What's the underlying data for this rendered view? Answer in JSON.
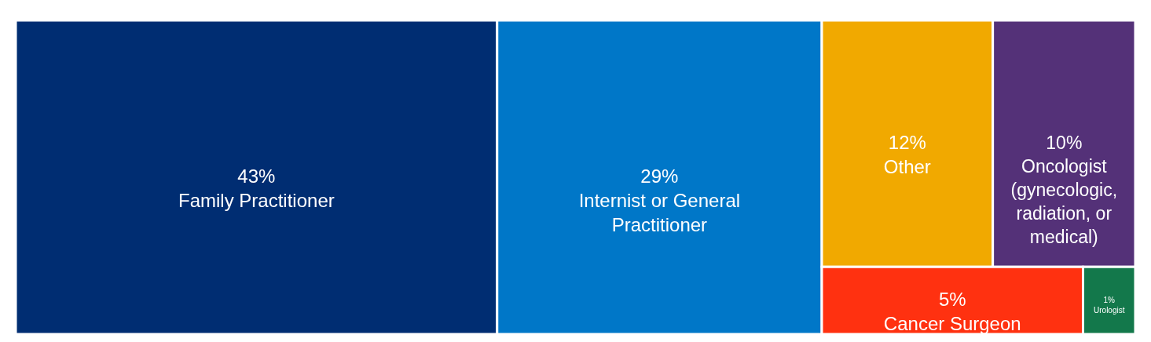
{
  "chart_data": {
    "type": "other",
    "categories": [
      "Family Practitioner",
      "Internist or General Practitioner",
      "Other",
      "Oncologist (gynecologic, radiation, or medical)",
      "Cancer Surgeon",
      "Urologist"
    ],
    "values": [
      43,
      29,
      12,
      10,
      5,
      1
    ],
    "value_labels": [
      "43%",
      "29%",
      "12%",
      "10%",
      "5%",
      "1%"
    ],
    "colors": [
      "#002d72",
      "#0077c8",
      "#f1a900",
      "#543178",
      "#ff3110",
      "#13784b"
    ]
  }
}
